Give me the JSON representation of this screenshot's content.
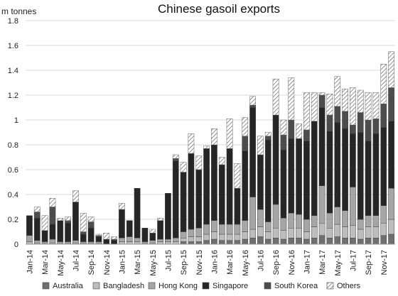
{
  "chart_data": {
    "type": "bar",
    "stacked": true,
    "title": "Chinese gasoil exports",
    "ylabel": "m tonnes",
    "xlabel": "",
    "ylim": [
      0,
      1.8
    ],
    "yticks": [
      "0",
      "0.2",
      "0.4",
      "0.6",
      "0.8",
      "1",
      "1.2",
      "1.4",
      "1.6",
      "1.8"
    ],
    "grid": "horizontal",
    "legend_position": "bottom",
    "categories": [
      "Jan-14",
      "Feb-14",
      "Mar-14",
      "Apr-14",
      "May-14",
      "Jun-14",
      "Jul-14",
      "Aug-14",
      "Sep-14",
      "Oct-14",
      "Nov-14",
      "Dec-14",
      "Jan-15",
      "Feb-15",
      "Mar-15",
      "Apr-15",
      "May-15",
      "Jun-15",
      "Jul-15",
      "Aug-15",
      "Sep-15",
      "Oct-15",
      "Nov-15",
      "Dec-15",
      "Jan-16",
      "Feb-16",
      "Mar-16",
      "Apr-16",
      "May-16",
      "Jun-16",
      "Jul-16",
      "Aug-16",
      "Sep-16",
      "Oct-16",
      "Nov-16",
      "Dec-16",
      "Jan-17",
      "Feb-17",
      "Mar-17",
      "Apr-17",
      "May-17",
      "Jun-17",
      "Jul-17",
      "Aug-17",
      "Sep-17",
      "Oct-17",
      "Nov-17",
      "Dec-17"
    ],
    "x_tick_labels": [
      "Jan-14",
      "Mar-14",
      "May-14",
      "Jul-14",
      "Sep-14",
      "Nov-14",
      "Jan-15",
      "Mar-15",
      "May-15",
      "Jul-15",
      "Sep-15",
      "Nov-15",
      "Jan-16",
      "Mar-16",
      "May-16",
      "Jul-16",
      "Sep-16",
      "Nov-16",
      "Jan-17",
      "Mar-17",
      "May-17",
      "Jul-17",
      "Sep-17",
      "Nov-17"
    ],
    "series": [
      {
        "name": "Australia",
        "color": "#6f6f6f",
        "pattern": "solid",
        "values": [
          0,
          0,
          0,
          0,
          0,
          0,
          0,
          0,
          0,
          0,
          0,
          0,
          0,
          0,
          0,
          0,
          0,
          0,
          0,
          0,
          0.02,
          0.02,
          0.02,
          0.03,
          0.04,
          0.03,
          0.03,
          0.03,
          0.04,
          0.05,
          0.06,
          0.04,
          0.05,
          0.04,
          0.05,
          0.05,
          0.04,
          0.05,
          0.07,
          0.05,
          0.06,
          0.05,
          0.05,
          0.04,
          0.05,
          0.05,
          0.07,
          0.08
        ]
      },
      {
        "name": "Bangladesh",
        "color": "#bdbdbd",
        "pattern": "solid",
        "values": [
          0.02,
          0.01,
          0.01,
          0.01,
          0.01,
          0.01,
          0.01,
          0.01,
          0.01,
          0.01,
          0,
          0,
          0.02,
          0.02,
          0.02,
          0.01,
          0.01,
          0.02,
          0.02,
          0.02,
          0.03,
          0.04,
          0.04,
          0.05,
          0.06,
          0.05,
          0.05,
          0.05,
          0.06,
          0.07,
          0.08,
          0.06,
          0.08,
          0.07,
          0.08,
          0.08,
          0.06,
          0.09,
          0.1,
          0.08,
          0.1,
          0.09,
          0.1,
          0.08,
          0.09,
          0.09,
          0.1,
          0.12
        ]
      },
      {
        "name": "Hong Kong",
        "color": "#a6a6a6",
        "pattern": "solid",
        "values": [
          0.05,
          0.02,
          0.01,
          0.03,
          0.01,
          0.01,
          0.02,
          0.01,
          0.01,
          0.01,
          0,
          0,
          0.03,
          0.04,
          0.03,
          0.01,
          0.02,
          0.02,
          0.02,
          0.03,
          0.05,
          0.06,
          0.07,
          0.08,
          0.09,
          0.08,
          0.08,
          0.08,
          0.09,
          0.26,
          0.14,
          0.08,
          0.19,
          0.1,
          0.12,
          0.11,
          0.1,
          0.09,
          0.3,
          0.12,
          0.14,
          0.13,
          0.31,
          0.08,
          0.09,
          0.09,
          0.14,
          0.25
        ]
      },
      {
        "name": "Singapore",
        "color": "#262626",
        "pattern": "solid",
        "values": [
          0.16,
          0.18,
          0.09,
          0.12,
          0.17,
          0.15,
          0.31,
          0.06,
          0.11,
          0.04,
          0.04,
          0.03,
          0.23,
          0.13,
          0.4,
          0.11,
          0.06,
          0.15,
          0.37,
          0.62,
          0.48,
          0.61,
          0.47,
          0.61,
          0.61,
          0.48,
          0.61,
          0.29,
          0.56,
          0.72,
          0.44,
          0.66,
          0.72,
          0.55,
          0.6,
          0.61,
          0.63,
          0.76,
          0.63,
          0.66,
          0.68,
          0.66,
          0.43,
          0.7,
          0.6,
          0.66,
          0.63,
          0.54
        ]
      },
      {
        "name": "South Korea",
        "color": "#4d4d4d",
        "pattern": "solid",
        "values": [
          0,
          0.05,
          0,
          0.14,
          0,
          0.02,
          0,
          0.02,
          0.05,
          0.01,
          0,
          0.01,
          0,
          0,
          0,
          0,
          0,
          0,
          0,
          0.02,
          0,
          0,
          0,
          0,
          0,
          0,
          0,
          0,
          0.12,
          0.02,
          0,
          0.03,
          0,
          0.12,
          0.15,
          0,
          0.09,
          0,
          0.1,
          0.13,
          0.13,
          0.14,
          0.07,
          0.16,
          0.17,
          0.12,
          0.19,
          0.27
        ]
      },
      {
        "name": "Others",
        "color": "#ffffff",
        "pattern": "hatched",
        "values": [
          0,
          0.04,
          0.12,
          0.07,
          0.02,
          0.03,
          0.09,
          0.15,
          0.04,
          0.01,
          0.05,
          0.02,
          0.05,
          0,
          0,
          0,
          0.03,
          0.02,
          0,
          0.03,
          0.08,
          0.16,
          0.11,
          0.02,
          0.13,
          0.06,
          0.24,
          0.2,
          0.15,
          0.07,
          0.15,
          0.03,
          0.29,
          0.12,
          0.34,
          0.12,
          0.3,
          0.23,
          0.02,
          0.17,
          0.24,
          0.18,
          0.3,
          0.18,
          0.22,
          0.21,
          0.32,
          0.29
        ]
      }
    ]
  }
}
